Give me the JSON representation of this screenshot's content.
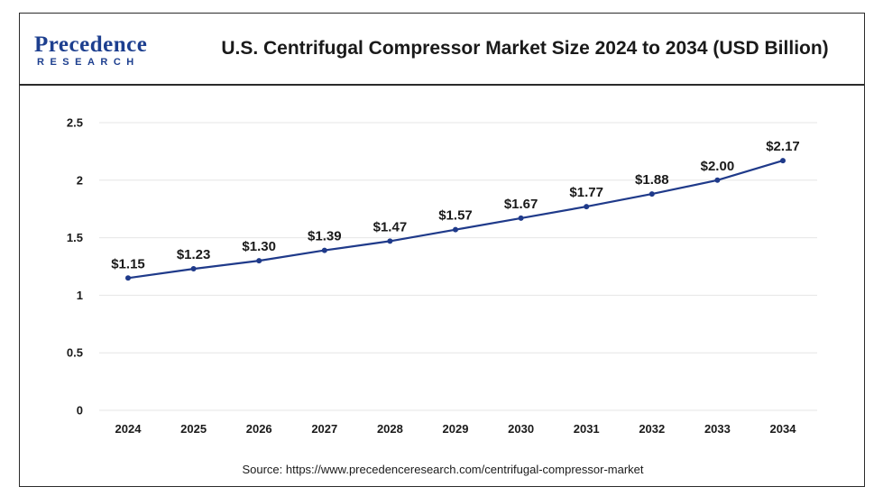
{
  "header": {
    "logo_top": "Precedence",
    "logo_bottom": "RESEARCH",
    "title": "U.S. Centrifugal Compressor Market Size 2024 to 2034 (USD Billion)"
  },
  "source": "Source: https://www.precedenceresearch.com/centrifugal-compressor-market",
  "colors": {
    "line": "#1f3a8a",
    "grid": "#e6e6e6",
    "brand": "#1d3f8f"
  },
  "chart_data": {
    "type": "line",
    "title": "U.S. Centrifugal Compressor Market Size 2024 to 2034 (USD Billion)",
    "xlabel": "",
    "ylabel": "",
    "x": [
      "2024",
      "2025",
      "2026",
      "2027",
      "2028",
      "2029",
      "2030",
      "2031",
      "2032",
      "2033",
      "2034"
    ],
    "series": [
      {
        "values": [
          1.15,
          1.23,
          1.3,
          1.39,
          1.47,
          1.57,
          1.67,
          1.77,
          1.88,
          2.0,
          2.17
        ],
        "labels": [
          "$1.15",
          "$1.23",
          "$1.30",
          "$1.39",
          "$1.47",
          "$1.57",
          "$1.67",
          "$1.77",
          "$1.88",
          "$2.00",
          "$2.17"
        ]
      }
    ],
    "ylim": [
      0,
      2.5
    ],
    "yticks": [
      "0",
      "0.5",
      "1",
      "1.5",
      "2",
      "2.5"
    ],
    "ytick_values": [
      0,
      0.5,
      1,
      1.5,
      2,
      2.5
    ],
    "grid": true,
    "legend": "none"
  }
}
